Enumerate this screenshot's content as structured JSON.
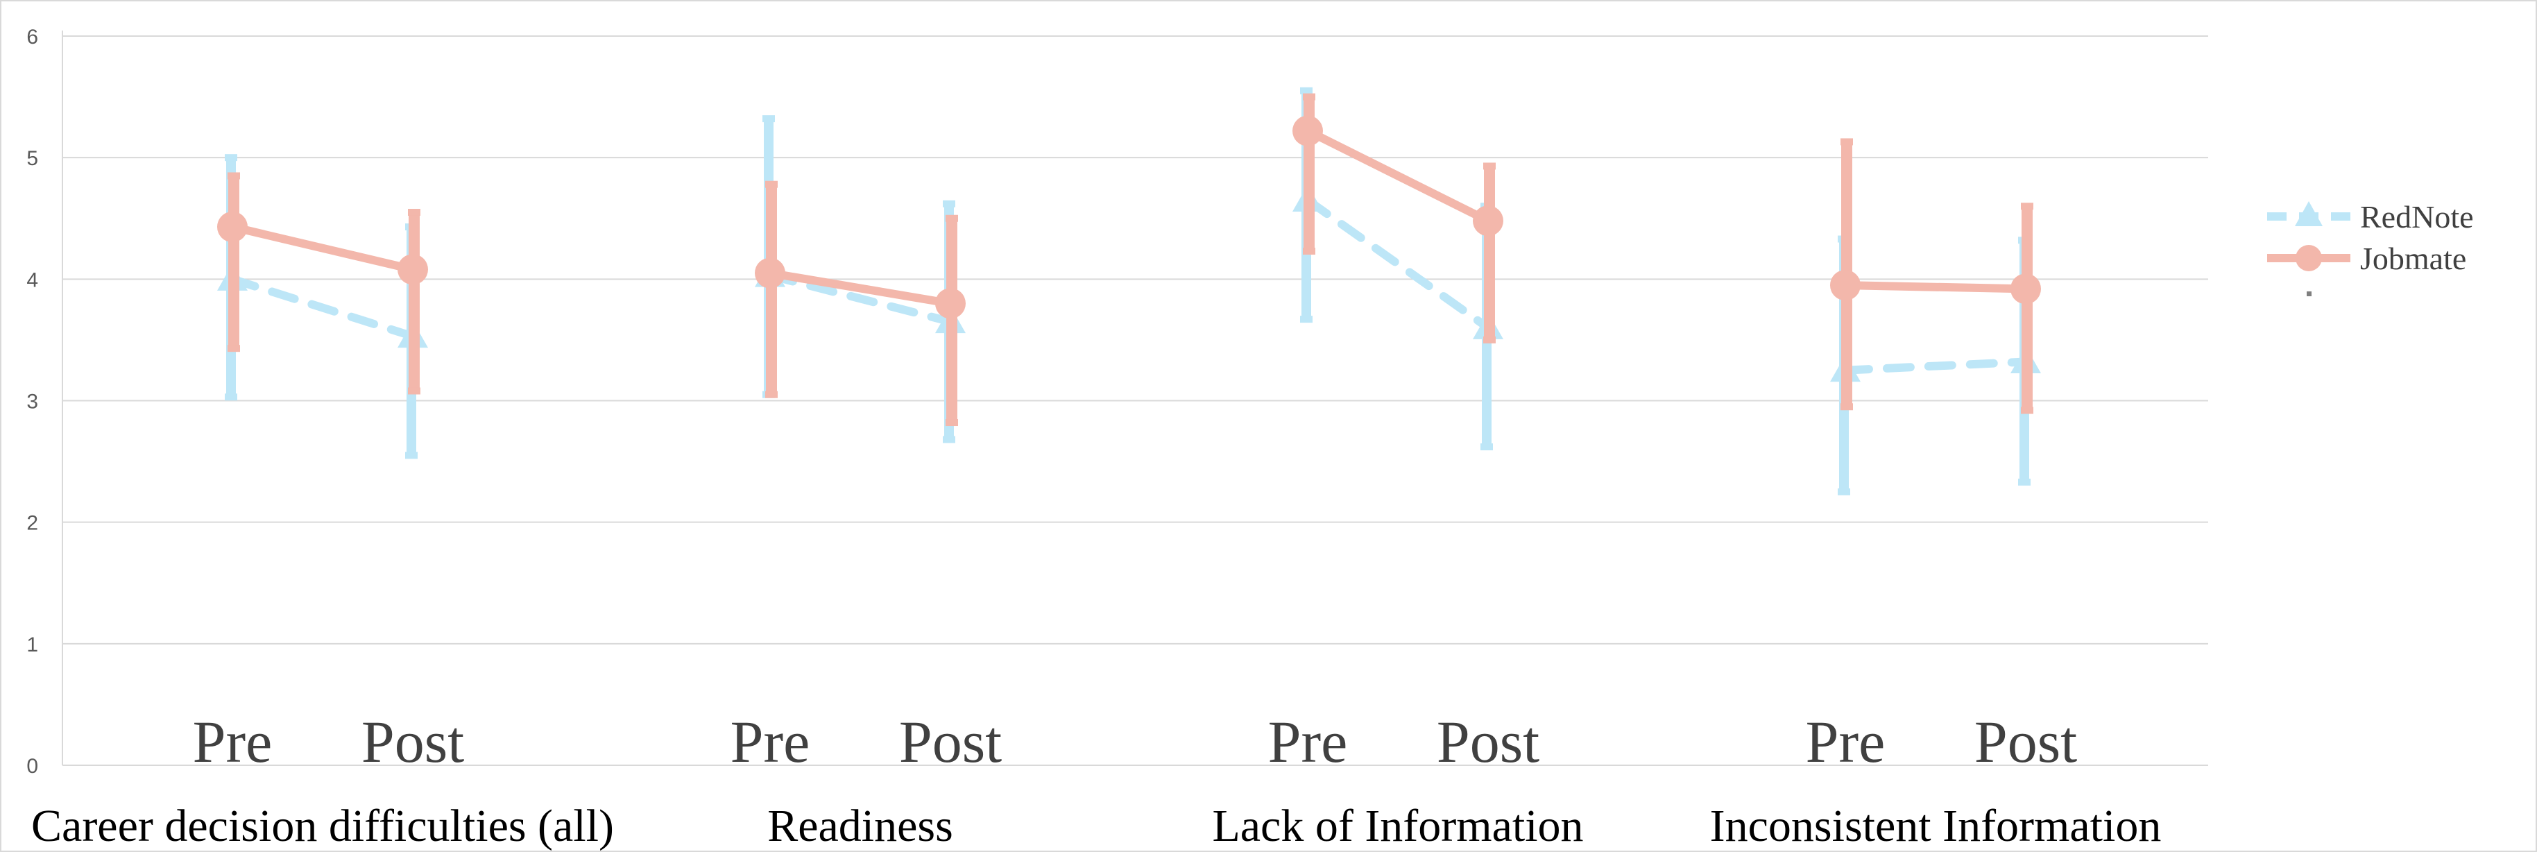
{
  "chart_data": {
    "type": "line",
    "title": "",
    "xlabel": "",
    "ylabel": "",
    "ylim": [
      0,
      6
    ],
    "yticks": [
      0,
      1,
      2,
      3,
      4,
      5,
      6
    ],
    "grid": true,
    "legend_position": "right",
    "groups": [
      "Career decision difficulties (all)",
      "Readiness",
      "Lack of Information",
      "Inconsistent Information"
    ],
    "timepoints": [
      "Pre",
      "Post"
    ],
    "series": [
      {
        "name": "RedNote",
        "color": "#bde6f7",
        "style": "dashed",
        "marker": "triangle",
        "values": [
          [
            4.0,
            3.53
          ],
          [
            4.03,
            3.65
          ],
          [
            4.65,
            3.6
          ],
          [
            3.25,
            3.32
          ]
        ],
        "err_low": [
          [
            3.03,
            2.55
          ],
          [
            3.05,
            2.68
          ],
          [
            3.67,
            2.62
          ],
          [
            2.25,
            2.33
          ]
        ],
        "err_high": [
          [
            5.0,
            4.43
          ],
          [
            5.32,
            4.62
          ],
          [
            5.55,
            4.6
          ],
          [
            4.33,
            4.32
          ]
        ]
      },
      {
        "name": "Jobmate",
        "color": "#f3b7ab",
        "style": "solid",
        "marker": "circle",
        "values": [
          [
            4.43,
            4.08
          ],
          [
            4.05,
            3.8
          ],
          [
            5.22,
            4.48
          ],
          [
            3.95,
            3.92
          ]
        ],
        "err_low": [
          [
            3.43,
            3.08
          ],
          [
            3.05,
            2.82
          ],
          [
            4.23,
            3.5
          ],
          [
            2.95,
            2.92
          ]
        ],
        "err_high": [
          [
            4.85,
            4.55
          ],
          [
            4.78,
            4.5
          ],
          [
            5.5,
            4.93
          ],
          [
            5.13,
            4.6
          ]
        ]
      }
    ]
  }
}
